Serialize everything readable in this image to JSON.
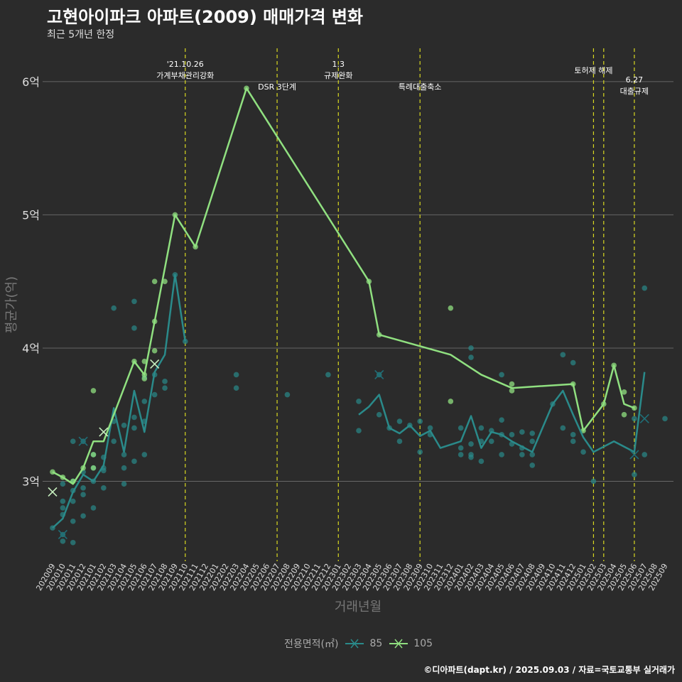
{
  "chart_data": {
    "type": "line",
    "title": "고현아이파크 아파트(2009) 매매가격 변화",
    "subtitle": "최근 5개년 한정",
    "xlabel": "거래년월",
    "ylabel": "평균가(억)",
    "caption": "©디아파트(dapt.kr) / 2025.09.03 / 자료=국토교통부 실거래가",
    "legend_title": "전용면적(㎡)",
    "ylim": [
      2.4,
      6.25
    ],
    "yticks": [
      3,
      4,
      5,
      6
    ],
    "ytick_labels": [
      "3억",
      "4억",
      "5억",
      "6억"
    ],
    "categories": [
      "202009",
      "202010",
      "202011",
      "202012",
      "202101",
      "202102",
      "202103",
      "202104",
      "202105",
      "202106",
      "202107",
      "202108",
      "202109",
      "202110",
      "202111",
      "202112",
      "202201",
      "202202",
      "202203",
      "202204",
      "202205",
      "202206",
      "202207",
      "202208",
      "202209",
      "202210",
      "202211",
      "202212",
      "202301",
      "202302",
      "202303",
      "202304",
      "202305",
      "202306",
      "202307",
      "202308",
      "202309",
      "202310",
      "202311",
      "202312",
      "202401",
      "202402",
      "202403",
      "202404",
      "202405",
      "202406",
      "202407",
      "202408",
      "202409",
      "202410",
      "202411",
      "202412",
      "202501",
      "202502",
      "202503",
      "202504",
      "202505",
      "202506",
      "202507",
      "202508",
      "202509"
    ],
    "series": [
      {
        "name": "85",
        "color": "#2a8a8a",
        "line": [
          [
            "202009",
            2.65
          ],
          [
            "202010",
            2.72
          ],
          [
            "202011",
            2.92
          ],
          [
            "202012",
            3.05
          ],
          [
            "202101",
            3.0
          ],
          [
            "202102",
            3.12
          ],
          [
            "202103",
            3.55
          ],
          [
            "202104",
            3.22
          ],
          [
            "202105",
            3.68
          ],
          [
            "202106",
            3.37
          ],
          [
            "202107",
            3.82
          ],
          [
            "202108",
            3.95
          ],
          [
            "202109",
            4.55
          ],
          [
            "202110",
            4.05
          ],
          null,
          [
            "202303",
            3.5
          ],
          [
            "202304",
            3.56
          ],
          [
            "202305",
            3.65
          ],
          [
            "202306",
            3.4
          ],
          [
            "202307",
            3.36
          ],
          [
            "202308",
            3.42
          ],
          [
            "202309",
            3.34
          ],
          [
            "202310",
            3.38
          ],
          [
            "202311",
            3.25
          ],
          [
            "202401",
            3.3
          ],
          [
            "202402",
            3.49
          ],
          [
            "202403",
            3.25
          ],
          [
            "202404",
            3.37
          ],
          [
            "202405",
            3.35
          ],
          [
            "202406",
            3.3
          ],
          [
            "202407",
            3.26
          ],
          [
            "202408",
            3.22
          ],
          [
            "202410",
            3.58
          ],
          [
            "202411",
            3.68
          ],
          [
            "202412",
            3.5
          ],
          [
            "202501",
            3.33
          ],
          [
            "202502",
            3.22
          ],
          [
            "202504",
            3.3
          ],
          [
            "202506",
            3.22
          ],
          [
            "202507",
            3.82
          ]
        ]
      },
      {
        "name": "105",
        "color": "#90e080",
        "line": [
          [
            "202009",
            3.07
          ],
          [
            "202010",
            3.03
          ],
          [
            "202011",
            2.98
          ],
          [
            "202012",
            3.1
          ],
          [
            "202101",
            3.3
          ],
          [
            "202102",
            3.3
          ],
          [
            "202105",
            3.9
          ],
          [
            "202106",
            3.8
          ],
          [
            "202107",
            4.2
          ],
          [
            "202109",
            5.0
          ],
          [
            "202111",
            4.76
          ],
          [
            "202204",
            5.95
          ],
          [
            "202304",
            4.5
          ],
          [
            "202305",
            4.1
          ],
          [
            "202312",
            3.95
          ],
          [
            "202403",
            3.8
          ],
          [
            "202406",
            3.7
          ],
          [
            "202412",
            3.73
          ],
          [
            "202501",
            3.38
          ],
          [
            "202503",
            3.58
          ],
          [
            "202504",
            3.87
          ],
          [
            "202505",
            3.58
          ],
          [
            "202506",
            3.55
          ]
        ]
      }
    ],
    "points_85": [
      [
        "202009",
        2.65
      ],
      [
        "202010",
        2.55
      ],
      [
        "202010",
        2.6
      ],
      [
        "202010",
        2.75
      ],
      [
        "202010",
        2.8
      ],
      [
        "202010",
        2.85
      ],
      [
        "202010",
        2.98
      ],
      [
        "202011",
        2.54
      ],
      [
        "202011",
        2.7
      ],
      [
        "202011",
        2.85
      ],
      [
        "202011",
        2.93
      ],
      [
        "202011",
        3.0
      ],
      [
        "202011",
        3.3
      ],
      [
        "202012",
        2.74
      ],
      [
        "202012",
        2.9
      ],
      [
        "202012",
        2.95
      ],
      [
        "202012",
        3.07
      ],
      [
        "202012",
        3.3
      ],
      [
        "202101",
        2.8
      ],
      [
        "202101",
        3.0
      ],
      [
        "202101",
        3.1
      ],
      [
        "202101",
        3.2
      ],
      [
        "202102",
        2.95
      ],
      [
        "202102",
        3.08
      ],
      [
        "202102",
        3.1
      ],
      [
        "202102",
        3.18
      ],
      [
        "202103",
        3.3
      ],
      [
        "202103",
        3.45
      ],
      [
        "202103",
        4.3
      ],
      [
        "202104",
        2.98
      ],
      [
        "202104",
        3.1
      ],
      [
        "202104",
        3.2
      ],
      [
        "202104",
        3.42
      ],
      [
        "202105",
        3.15
      ],
      [
        "202105",
        3.4
      ],
      [
        "202105",
        3.48
      ],
      [
        "202105",
        4.15
      ],
      [
        "202105",
        4.35
      ],
      [
        "202106",
        3.2
      ],
      [
        "202106",
        3.45
      ],
      [
        "202106",
        3.6
      ],
      [
        "202106",
        3.78
      ],
      [
        "202107",
        3.65
      ],
      [
        "202107",
        3.8
      ],
      [
        "202108",
        3.7
      ],
      [
        "202108",
        3.75
      ],
      [
        "202109",
        4.55
      ],
      [
        "202110",
        4.05
      ],
      [
        "202203",
        3.7
      ],
      [
        "202203",
        3.8
      ],
      [
        "202208",
        3.65
      ],
      [
        "202212",
        3.8
      ],
      [
        "202303",
        3.38
      ],
      [
        "202303",
        3.6
      ],
      [
        "202305",
        3.5
      ],
      [
        "202305",
        3.8
      ],
      [
        "202306",
        3.4
      ],
      [
        "202307",
        3.3
      ],
      [
        "202307",
        3.45
      ],
      [
        "202308",
        3.42
      ],
      [
        "202309",
        3.22
      ],
      [
        "202309",
        3.45
      ],
      [
        "202310",
        3.35
      ],
      [
        "202310",
        3.4
      ],
      [
        "202401",
        3.2
      ],
      [
        "202401",
        3.25
      ],
      [
        "202401",
        3.4
      ],
      [
        "202402",
        3.18
      ],
      [
        "202402",
        3.2
      ],
      [
        "202402",
        3.28
      ],
      [
        "202402",
        3.93
      ],
      [
        "202402",
        4.0
      ],
      [
        "202403",
        3.15
      ],
      [
        "202403",
        3.3
      ],
      [
        "202403",
        3.4
      ],
      [
        "202404",
        3.3
      ],
      [
        "202404",
        3.38
      ],
      [
        "202405",
        3.2
      ],
      [
        "202405",
        3.35
      ],
      [
        "202405",
        3.46
      ],
      [
        "202405",
        3.8
      ],
      [
        "202406",
        3.28
      ],
      [
        "202406",
        3.35
      ],
      [
        "202407",
        3.2
      ],
      [
        "202407",
        3.25
      ],
      [
        "202407",
        3.37
      ],
      [
        "202408",
        3.12
      ],
      [
        "202408",
        3.2
      ],
      [
        "202408",
        3.3
      ],
      [
        "202408",
        3.36
      ],
      [
        "202410",
        3.58
      ],
      [
        "202411",
        3.4
      ],
      [
        "202411",
        3.95
      ],
      [
        "202412",
        3.3
      ],
      [
        "202412",
        3.35
      ],
      [
        "202412",
        3.89
      ],
      [
        "202501",
        3.22
      ],
      [
        "202502",
        3.0
      ],
      [
        "202506",
        3.05
      ],
      [
        "202506",
        3.47
      ],
      [
        "202507",
        3.2
      ],
      [
        "202507",
        4.45
      ],
      [
        "202509",
        3.47
      ]
    ],
    "points_105": [
      [
        "202009",
        3.07
      ],
      [
        "202010",
        3.03
      ],
      [
        "202011",
        3.0
      ],
      [
        "202012",
        3.1
      ],
      [
        "202101",
        3.1
      ],
      [
        "202101",
        3.2
      ],
      [
        "202101",
        3.68
      ],
      [
        "202105",
        3.9
      ],
      [
        "202106",
        3.77
      ],
      [
        "202106",
        3.8
      ],
      [
        "202106",
        3.9
      ],
      [
        "202107",
        3.98
      ],
      [
        "202107",
        4.2
      ],
      [
        "202107",
        4.5
      ],
      [
        "202108",
        4.5
      ],
      [
        "202109",
        5.0
      ],
      [
        "202111",
        4.76
      ],
      [
        "202204",
        5.95
      ],
      [
        "202304",
        4.5
      ],
      [
        "202305",
        4.1
      ],
      [
        "202312",
        3.6
      ],
      [
        "202312",
        4.3
      ],
      [
        "202406",
        3.68
      ],
      [
        "202406",
        3.73
      ],
      [
        "202412",
        3.73
      ],
      [
        "202501",
        3.38
      ],
      [
        "202503",
        3.58
      ],
      [
        "202504",
        3.87
      ],
      [
        "202505",
        3.5
      ],
      [
        "202505",
        3.67
      ],
      [
        "202506",
        3.55
      ]
    ],
    "cross_85": [
      [
        "202010",
        2.6
      ],
      [
        "202012",
        3.3
      ],
      [
        "202305",
        3.8
      ],
      [
        "202506",
        3.2
      ],
      [
        "202507",
        3.47
      ]
    ],
    "cross_105": [
      [
        "202009",
        2.92
      ],
      [
        "202102",
        3.37
      ],
      [
        "202107",
        3.88
      ]
    ],
    "events": [
      {
        "at": "202110",
        "lines": [
          "'21.10.26",
          "가계부채관리강화"
        ],
        "row": 0
      },
      {
        "at": "202207",
        "lines": [
          "DSR 3단계"
        ],
        "row": 1
      },
      {
        "at": "202301",
        "lines": [
          "1.3",
          "규제완화"
        ],
        "row": 0
      },
      {
        "at": "202309",
        "lines": [
          "특례대출축소"
        ],
        "row": 1
      },
      {
        "at": "202502",
        "lines": [
          "토허제 해제"
        ],
        "row": 0
      },
      {
        "at": "202503",
        "lines": [],
        "row": 0
      },
      {
        "at": "202506",
        "lines": [
          "6.27",
          "대출규제"
        ],
        "row": 2
      }
    ]
  }
}
